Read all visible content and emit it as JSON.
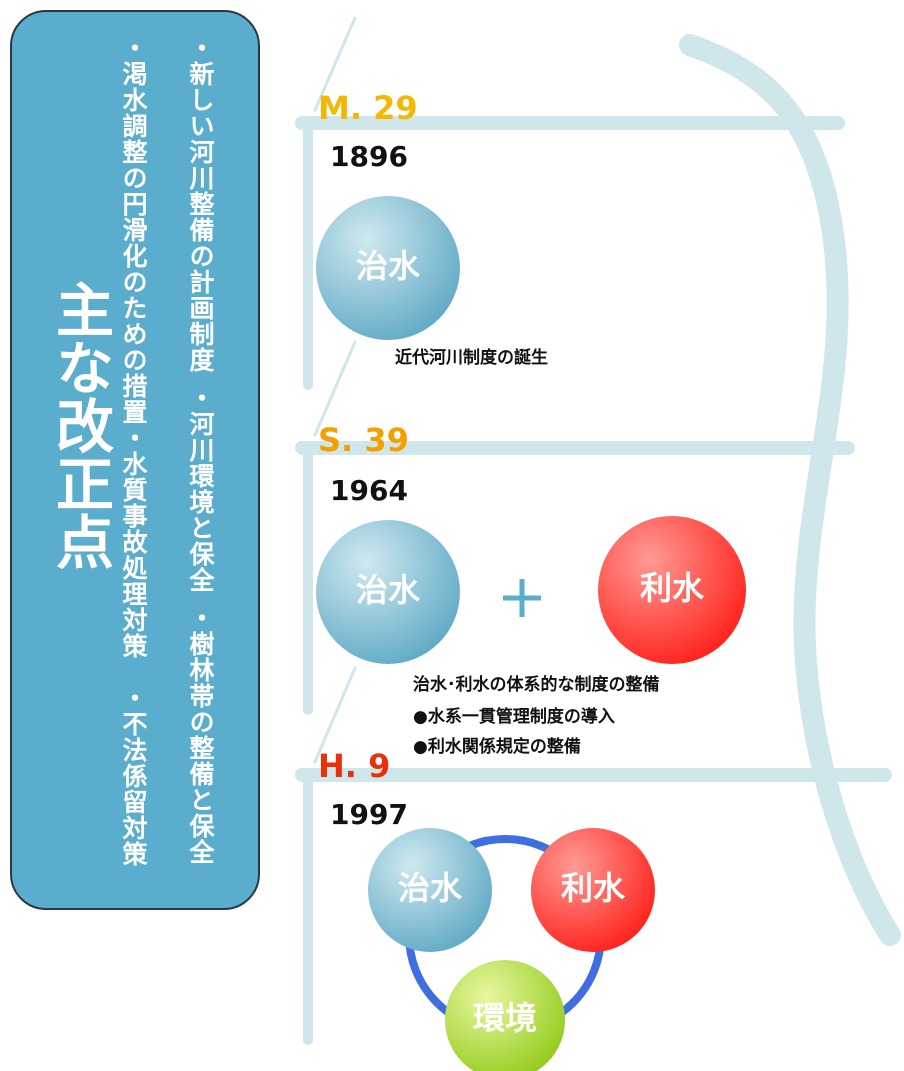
{
  "sidebar": {
    "title": "主な改正点",
    "items": [
      "・新しい河川整備の計画制度",
      "・河川環境と保全",
      "・樹林帯の整備と保全",
      "・渇水調整の円滑化のための措置",
      "・水質事故処理対策",
      "・不法係留対策"
    ]
  },
  "eras": [
    {
      "label": "M. 29",
      "year": "1896",
      "circles": [
        "治水"
      ],
      "captions": [
        "近代河川制度の誕生"
      ]
    },
    {
      "label": "S. 39",
      "year": "1964",
      "circles": [
        "治水",
        "利水"
      ],
      "captions": [
        "治水･利水の体系的な制度の整備",
        "●水系一貫管理制度の導入",
        "●利水関係規定の整備"
      ]
    },
    {
      "label": "H. 9",
      "year": "1997",
      "circles": [
        "治水",
        "利水",
        "環境"
      ]
    }
  ]
}
